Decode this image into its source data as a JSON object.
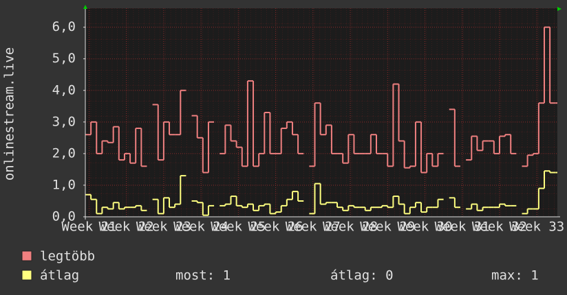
{
  "chart_data": {
    "type": "step",
    "ylabel": "onlinestream.live",
    "xlim": [
      20.9,
      33.55
    ],
    "xticks": [
      {
        "value": 21,
        "label": "Week 21"
      },
      {
        "value": 22,
        "label": "Week 22"
      },
      {
        "value": 23,
        "label": "Week 23"
      },
      {
        "value": 24,
        "label": "Week 24"
      },
      {
        "value": 25,
        "label": "Week 25"
      },
      {
        "value": 26,
        "label": "Week 26"
      },
      {
        "value": 27,
        "label": "Week 27"
      },
      {
        "value": 28,
        "label": "Week 28"
      },
      {
        "value": 29,
        "label": "Week 29"
      },
      {
        "value": 30,
        "label": "Week 30"
      },
      {
        "value": 31,
        "label": "Week 31"
      },
      {
        "value": 32,
        "label": "Week 32"
      },
      {
        "value": 33,
        "label": "Week 33"
      }
    ],
    "ylim": [
      0,
      6.6
    ],
    "yticks": [
      {
        "value": 0,
        "label": "0,0"
      },
      {
        "value": 1,
        "label": "1,0"
      },
      {
        "value": 2,
        "label": "2,0"
      },
      {
        "value": 3,
        "label": "3,0"
      },
      {
        "value": 4,
        "label": "4,0"
      },
      {
        "value": 5,
        "label": "5,0"
      },
      {
        "value": 6,
        "label": "6,0"
      }
    ],
    "grid": true,
    "x": [
      20.9,
      21.05,
      21.2,
      21.35,
      21.5,
      21.65,
      21.8,
      21.95,
      22.1,
      22.25,
      22.4,
      22.55,
      22.7,
      22.85,
      23,
      23.15,
      23.3,
      23.45,
      23.6,
      23.75,
      23.9,
      24.05,
      24.2,
      24.35,
      24.5,
      24.65,
      24.8,
      24.95,
      25.1,
      25.25,
      25.4,
      25.55,
      25.7,
      25.85,
      26,
      26.15,
      26.3,
      26.45,
      26.6,
      26.75,
      26.9,
      27.05,
      27.2,
      27.35,
      27.5,
      27.65,
      27.8,
      27.95,
      28.1,
      28.25,
      28.4,
      28.55,
      28.7,
      28.85,
      29,
      29.15,
      29.3,
      29.45,
      29.6,
      29.75,
      29.9,
      30.05,
      30.2,
      30.35,
      30.5,
      30.65,
      30.8,
      30.95,
      31.1,
      31.25,
      31.4,
      31.55,
      31.7,
      31.85,
      32,
      32.15,
      32.3,
      32.45,
      32.6,
      32.75,
      32.9,
      33.05,
      33.2,
      33.35,
      33.5
    ],
    "series": [
      {
        "name": "legtöbb",
        "color": "#f08080",
        "values": [
          2.6,
          3.0,
          2.0,
          2.4,
          2.35,
          2.85,
          1.8,
          2.0,
          1.7,
          2.8,
          1.6,
          null,
          3.55,
          1.8,
          3.0,
          2.6,
          2.6,
          4.0,
          null,
          3.2,
          2.5,
          1.4,
          3.0,
          null,
          2.0,
          2.9,
          2.4,
          2.2,
          1.6,
          4.3,
          1.6,
          2.0,
          3.3,
          2.0,
          2.0,
          2.8,
          3.0,
          2.6,
          2.0,
          null,
          1.6,
          3.6,
          2.6,
          2.9,
          2.0,
          2.0,
          1.7,
          2.6,
          2.0,
          2.0,
          2.0,
          2.6,
          2.0,
          2.0,
          1.6,
          4.2,
          2.4,
          1.55,
          1.6,
          3.0,
          1.4,
          2.0,
          1.6,
          2.0,
          null,
          3.4,
          1.6,
          null,
          1.8,
          2.55,
          2.1,
          2.4,
          2.4,
          2.0,
          2.55,
          2.6,
          2.0,
          null,
          1.6,
          1.95,
          2.0,
          3.6,
          6.0,
          3.6,
          3.6
        ]
      },
      {
        "name": "átlag",
        "color": "#ffff80",
        "values": [
          0.7,
          0.55,
          0.1,
          0.3,
          0.25,
          0.45,
          0.25,
          0.3,
          0.3,
          0.35,
          0.2,
          null,
          0.55,
          0.1,
          0.6,
          0.3,
          0.4,
          1.3,
          null,
          0.5,
          0.45,
          0.05,
          0.35,
          null,
          0.35,
          0.4,
          0.65,
          0.35,
          0.3,
          0.4,
          0.2,
          0.35,
          0.4,
          0.1,
          0.15,
          0.35,
          0.55,
          0.8,
          0.5,
          null,
          0.1,
          1.05,
          0.4,
          0.45,
          0.45,
          0.3,
          0.2,
          0.35,
          0.3,
          0.3,
          0.2,
          0.3,
          0.3,
          0.35,
          0.3,
          0.65,
          0.4,
          0.1,
          0.3,
          0.45,
          0.15,
          0.3,
          0.3,
          0.55,
          null,
          0.6,
          0.3,
          null,
          0.25,
          0.4,
          0.2,
          0.3,
          0.3,
          0.3,
          0.4,
          0.35,
          0.35,
          null,
          0.1,
          0.25,
          0.25,
          0.9,
          1.45,
          1.4,
          1.4
        ]
      }
    ],
    "stats": [
      "most: 1",
      "átlag: 0",
      "max: 1"
    ]
  }
}
